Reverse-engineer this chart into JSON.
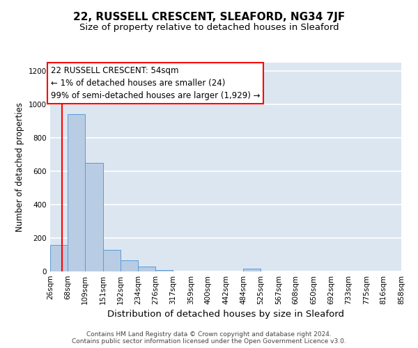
{
  "title": "22, RUSSELL CRESCENT, SLEAFORD, NG34 7JF",
  "subtitle": "Size of property relative to detached houses in Sleaford",
  "xlabel": "Distribution of detached houses by size in Sleaford",
  "ylabel": "Number of detached properties",
  "bin_edges": [
    26,
    68,
    109,
    151,
    192,
    234,
    276,
    317,
    359,
    400,
    442,
    484,
    525,
    567,
    608,
    650,
    692,
    733,
    775,
    816,
    858
  ],
  "bin_labels": [
    "26sqm",
    "68sqm",
    "109sqm",
    "151sqm",
    "192sqm",
    "234sqm",
    "276sqm",
    "317sqm",
    "359sqm",
    "400sqm",
    "442sqm",
    "484sqm",
    "525sqm",
    "567sqm",
    "608sqm",
    "650sqm",
    "692sqm",
    "733sqm",
    "775sqm",
    "816sqm",
    "858sqm"
  ],
  "bar_heights": [
    160,
    940,
    650,
    130,
    65,
    30,
    10,
    0,
    0,
    0,
    0,
    15,
    0,
    0,
    0,
    0,
    0,
    0,
    0,
    0
  ],
  "bar_color": "#b8cce4",
  "bar_edgecolor": "#5b9bd5",
  "property_size": 54,
  "vline_color": "#ff0000",
  "annotation_line1": "22 RUSSELL CRESCENT: 54sqm",
  "annotation_line2": "← 1% of detached houses are smaller (24)",
  "annotation_line3": "99% of semi-detached houses are larger (1,929) →",
  "annotation_box_color": "#ffffff",
  "annotation_box_edgecolor": "#ff0000",
  "ylim": [
    0,
    1250
  ],
  "yticks": [
    0,
    200,
    400,
    600,
    800,
    1000,
    1200
  ],
  "bg_color": "#dce6f1",
  "grid_color": "#ffffff",
  "footer_text": "Contains HM Land Registry data © Crown copyright and database right 2024.\nContains public sector information licensed under the Open Government Licence v3.0.",
  "title_fontsize": 11,
  "subtitle_fontsize": 9.5,
  "annotation_fontsize": 8.5,
  "tick_fontsize": 7.5,
  "ylabel_fontsize": 8.5,
  "xlabel_fontsize": 9.5
}
